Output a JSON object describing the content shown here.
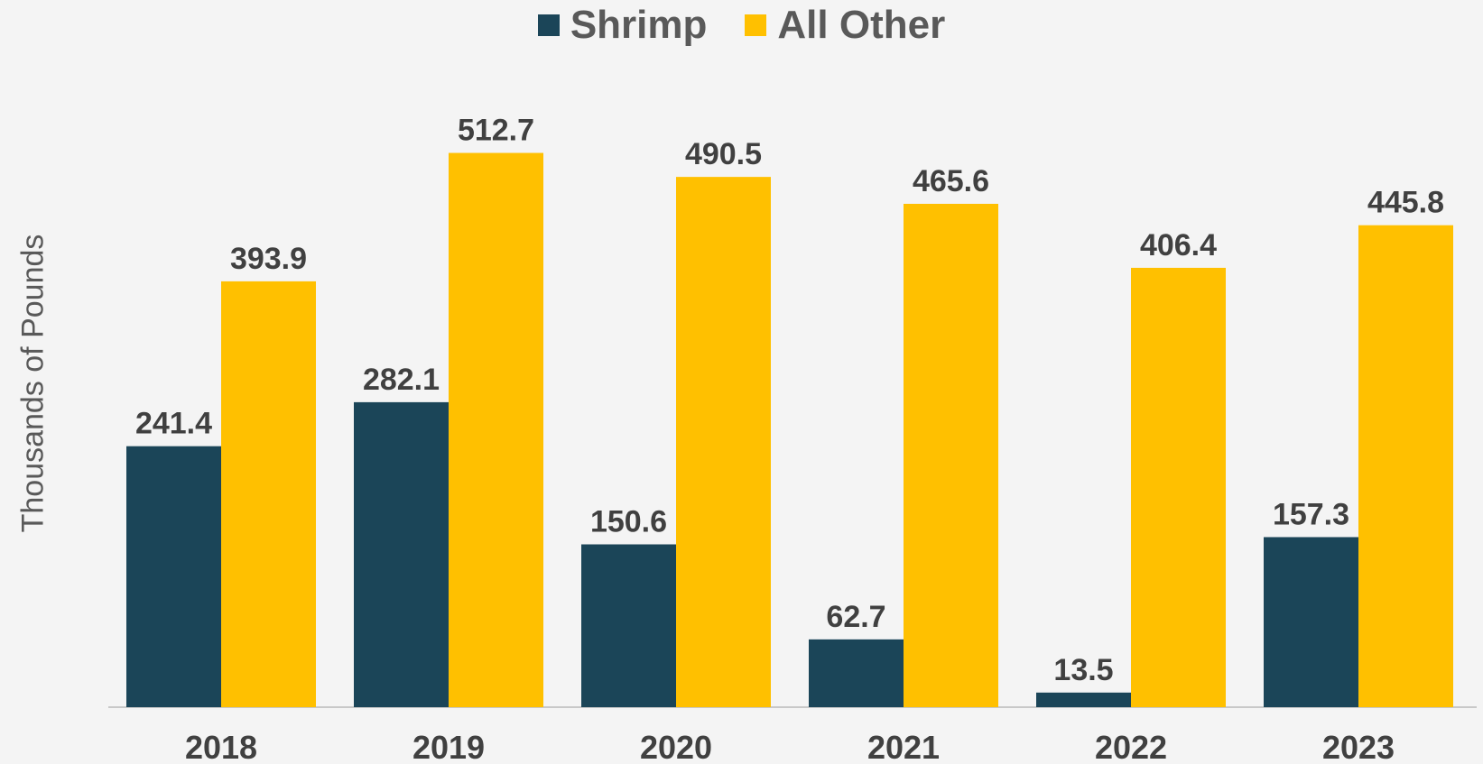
{
  "chart_data": {
    "type": "bar",
    "categories": [
      "2018",
      "2019",
      "2020",
      "2021",
      "2022",
      "2023"
    ],
    "series": [
      {
        "name": "Shrimp",
        "color": "#1b4558",
        "values": [
          241.4,
          282.1,
          150.6,
          62.7,
          13.5,
          157.3
        ]
      },
      {
        "name": "All Other",
        "color": "#ffc000",
        "values": [
          393.9,
          512.7,
          490.5,
          465.6,
          406.4,
          445.8
        ]
      }
    ],
    "ylabel": "Thousands of Pounds",
    "xlabel": "",
    "ylim": [
      0,
      600
    ],
    "legend_position": "top-center",
    "grid": false,
    "data_labels": true
  }
}
